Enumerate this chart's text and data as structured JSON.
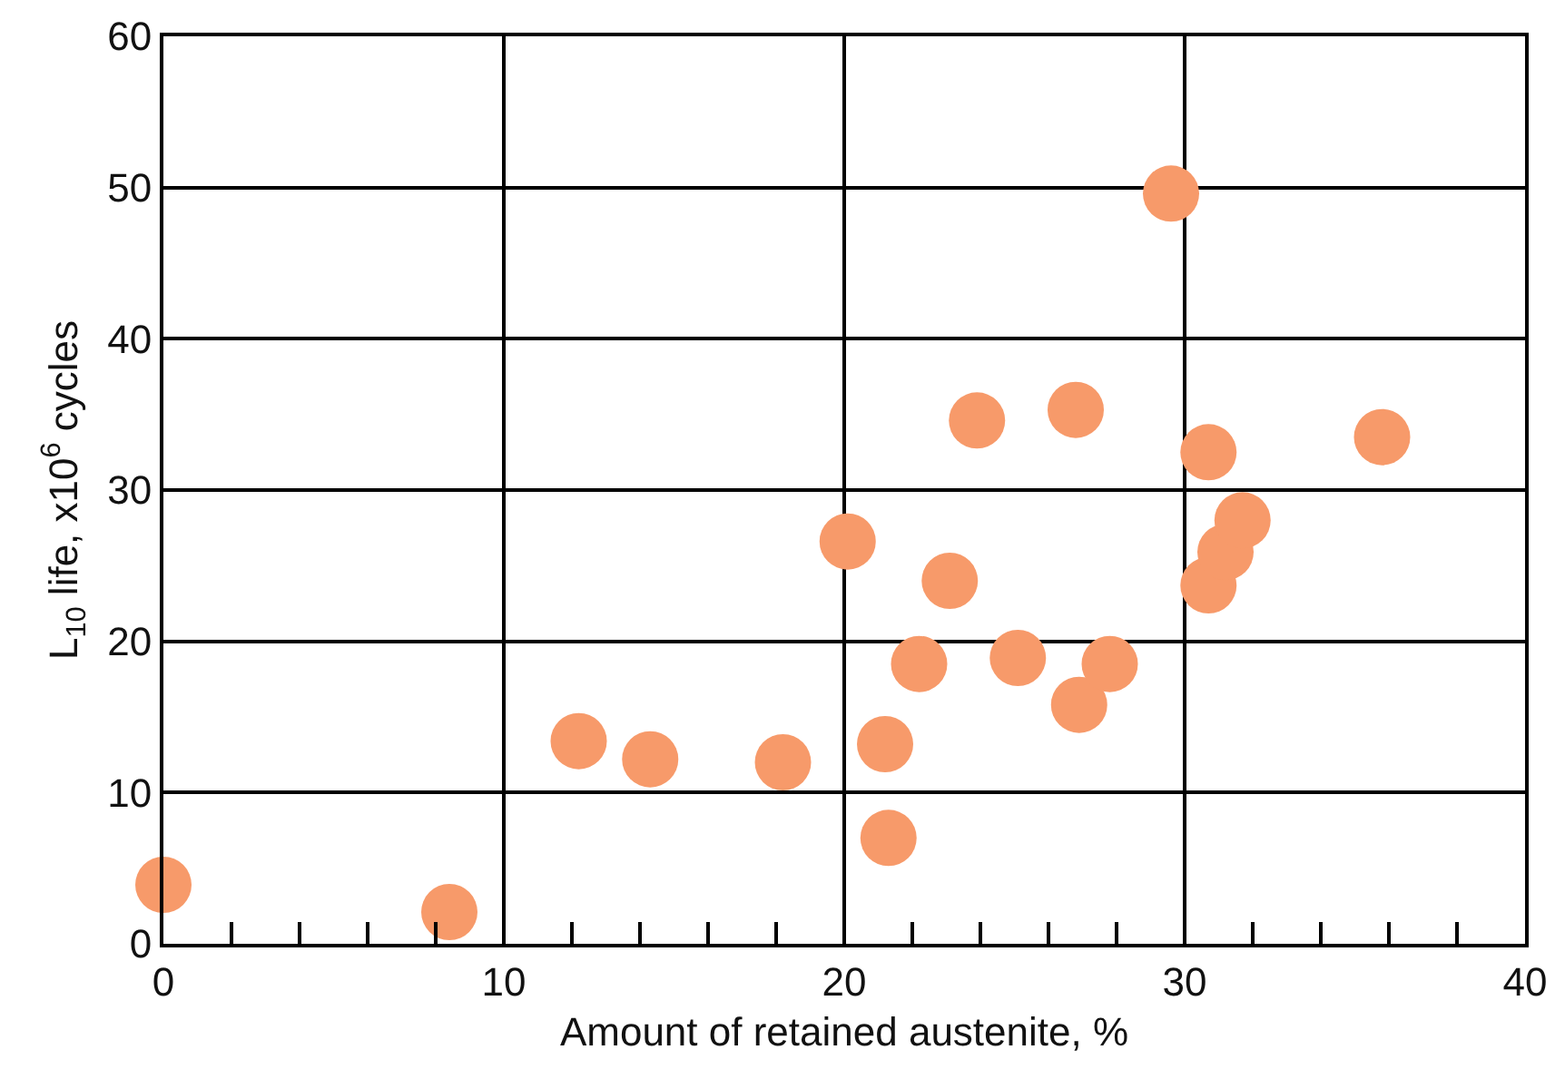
{
  "chart_data": {
    "type": "scatter",
    "xlabel": "Amount of retained austenite, %",
    "ylabel": "L$_{10}$ life, x10$^{6}$ cycles",
    "x": [
      0,
      8.4,
      12.2,
      14.3,
      18.2,
      20.1,
      21.2,
      21.3,
      22.2,
      23.1,
      23.9,
      25.1,
      26.8,
      26.9,
      27.8,
      29.6,
      30.7,
      30.7,
      31.2,
      31.7,
      35.8
    ],
    "values": [
      3.9,
      2.1,
      13.4,
      12.2,
      12.0,
      26.6,
      13.2,
      7.0,
      18.5,
      24.0,
      34.6,
      18.9,
      35.3,
      15.8,
      18.5,
      49.6,
      32.5,
      23.7,
      25.9,
      28.0,
      33.5
    ],
    "color": "#f79a6a",
    "marker": "circle",
    "grid": true,
    "legend": false,
    "xlim": [
      0,
      40
    ],
    "ylim": [
      0,
      60
    ],
    "xticks": [
      0,
      {
        "value": 2,
        "label": null
      },
      {
        "value": 4,
        "label": null
      },
      {
        "value": 6,
        "label": null
      },
      {
        "value": 8,
        "label": null
      },
      10,
      {
        "value": 12,
        "label": null
      },
      {
        "value": 14,
        "label": null
      },
      {
        "value": 16,
        "label": null
      },
      {
        "value": 18,
        "label": null
      },
      20,
      {
        "value": 22,
        "label": null
      },
      {
        "value": 24,
        "label": null
      },
      {
        "value": 26,
        "label": null
      },
      {
        "value": 28,
        "label": null
      },
      30,
      {
        "value": 32,
        "label": null
      },
      {
        "value": 34,
        "label": null
      },
      {
        "value": 36,
        "label": null
      },
      {
        "value": 38,
        "label": null
      },
      40
    ],
    "yticks": [
      0,
      10,
      20,
      30,
      40,
      50,
      60
    ]
  }
}
